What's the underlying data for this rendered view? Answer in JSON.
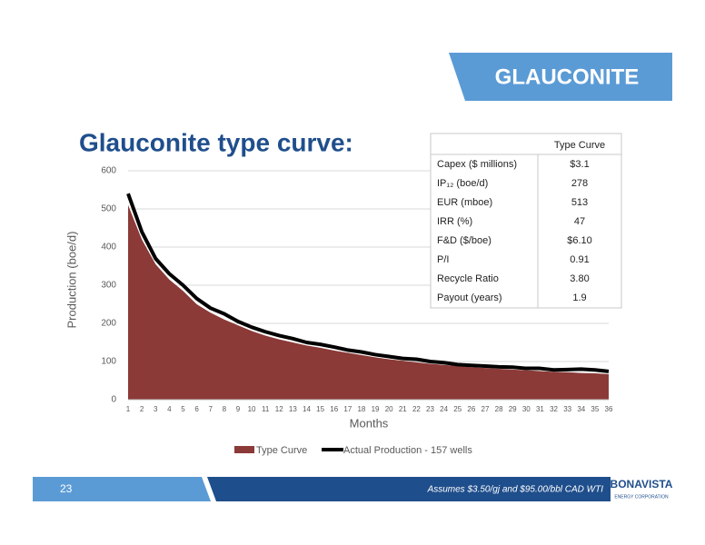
{
  "header": {
    "badge": "GLAUCONITE"
  },
  "chart_data": {
    "type": "area",
    "title": "Glauconite type curve:",
    "x_label": "Months",
    "y_label": "Production (boe/d)",
    "categories": [
      "1",
      "2",
      "3",
      "4",
      "5",
      "6",
      "7",
      "8",
      "9",
      "10",
      "11",
      "12",
      "13",
      "14",
      "15",
      "16",
      "17",
      "18",
      "19",
      "20",
      "21",
      "22",
      "23",
      "24",
      "25",
      "26",
      "27",
      "28",
      "29",
      "30",
      "31",
      "32",
      "33",
      "34",
      "35",
      "36"
    ],
    "ylim": [
      0,
      600
    ],
    "yticks": [
      0,
      100,
      200,
      300,
      400,
      500,
      600
    ],
    "grid": true,
    "series": [
      {
        "name": "Type Curve",
        "type": "area",
        "color": "#8b3a37",
        "values": [
          510,
          420,
          355,
          315,
          285,
          250,
          228,
          210,
          195,
          180,
          168,
          158,
          150,
          142,
          136,
          129,
          123,
          117,
          111,
          106,
          102,
          98,
          94,
          91,
          88,
          85,
          83,
          81,
          79,
          77,
          75,
          73,
          72,
          70,
          69,
          67
        ]
      },
      {
        "name": "Actual Production - 157 wells",
        "type": "line",
        "color": "#000000",
        "values": [
          540,
          440,
          370,
          330,
          300,
          265,
          240,
          225,
          205,
          190,
          178,
          168,
          160,
          150,
          145,
          138,
          130,
          125,
          118,
          113,
          108,
          106,
          100,
          97,
          92,
          90,
          88,
          86,
          85,
          82,
          82,
          78,
          79,
          80,
          78,
          74
        ]
      }
    ]
  },
  "table": {
    "column_header": "Type Curve",
    "rows": [
      [
        "Capex ($ millions)",
        "$3.1"
      ],
      [
        "IP₁₂ (boe/d)",
        "278"
      ],
      [
        "EUR (mboe)",
        "513"
      ],
      [
        "IRR (%)",
        "47"
      ],
      [
        "F&D ($/boe)",
        "$6.10"
      ],
      [
        "P/I",
        "0.91"
      ],
      [
        "Recycle Ratio",
        "3.80"
      ],
      [
        "Payout (years)",
        "1.9"
      ]
    ]
  },
  "footer": {
    "page": "23",
    "note": "Assumes $3.50/gj and $95.00/bbl CAD WTI",
    "logo": "BONAVISTA",
    "logo_sub": "ENERGY CORPORATION"
  }
}
